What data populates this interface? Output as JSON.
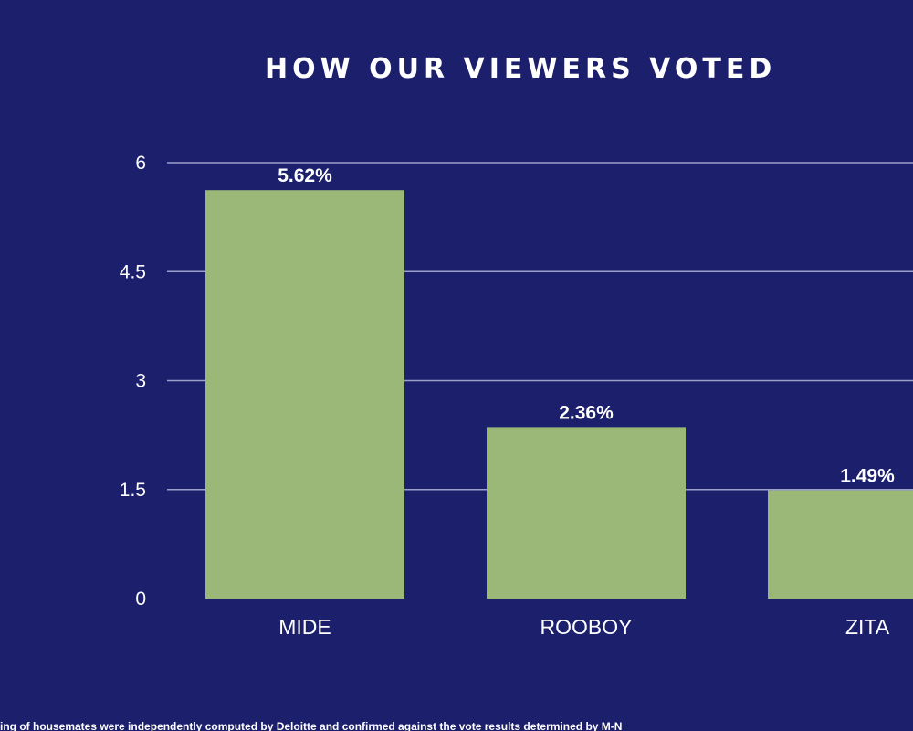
{
  "title": "HOW OUR VIEWERS VOTED",
  "footnote": "ing of housemates were independently computed by Deloitte and confirmed against the vote results determined by M-N",
  "colors": {
    "background": "#1c1f6b",
    "bar": "#9bb878",
    "grid": "#9da0c8",
    "text": "#ffffff"
  },
  "chart_data": {
    "type": "bar",
    "title": "HOW OUR VIEWERS VOTED",
    "categories": [
      "MIDE",
      "ROOBOY",
      "ZITA"
    ],
    "values": [
      5.62,
      2.36,
      1.49
    ],
    "data_labels": [
      "5.62%",
      "2.36%",
      "1.49%"
    ],
    "ylim": [
      0,
      6
    ],
    "yticks": [
      0,
      1.5,
      3,
      4.5,
      6
    ],
    "ytick_labels": [
      "0",
      "1.5",
      "3",
      "4.5",
      "6"
    ],
    "xlabel": "",
    "ylabel": "",
    "grid": true,
    "legend": "none"
  }
}
